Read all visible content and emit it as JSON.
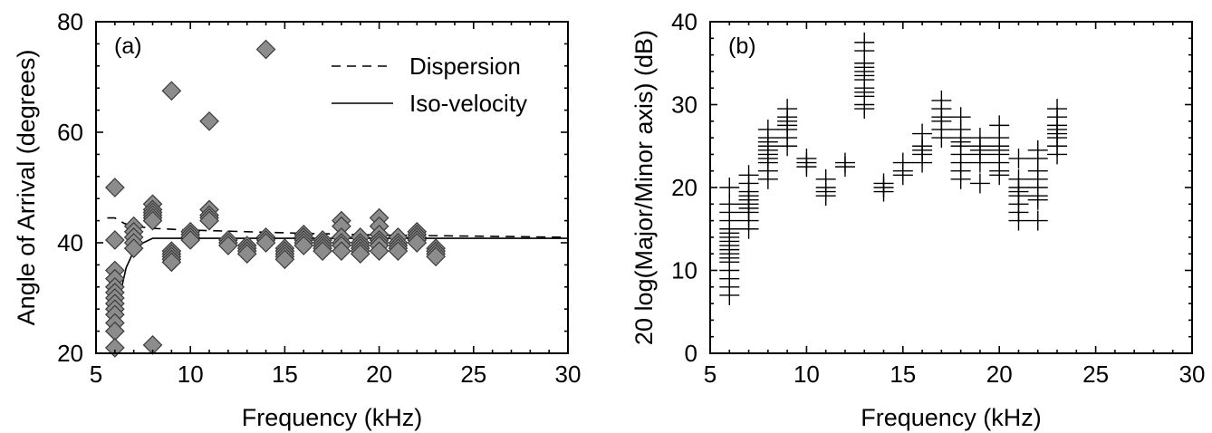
{
  "chart_data": [
    {
      "type": "scatter",
      "panel_label": "(a)",
      "title": "",
      "xlabel": "Frequency  (kHz)",
      "ylabel": "Angle of Arrival (degrees)",
      "xlim": [
        5,
        30
      ],
      "ylim": [
        20,
        80
      ],
      "xticks": [
        5,
        10,
        15,
        20,
        25,
        30
      ],
      "yticks": [
        20,
        40,
        60,
        80
      ],
      "ytick_labels": [
        "20",
        "40",
        "60",
        "80"
      ],
      "legend_position": "top-right",
      "legend": [
        {
          "label": "Dispersion",
          "style": "dashed"
        },
        {
          "label": "Iso-velocity",
          "style": "solid"
        }
      ],
      "series": [
        {
          "marker": "diamond",
          "points": [
            [
              6,
              50
            ],
            [
              6,
              40.5
            ],
            [
              6,
              35
            ],
            [
              6,
              33.5
            ],
            [
              6,
              32
            ],
            [
              6,
              31
            ],
            [
              6,
              30
            ],
            [
              6,
              29
            ],
            [
              6,
              28
            ],
            [
              6,
              27
            ],
            [
              6,
              25.5
            ],
            [
              6,
              24
            ],
            [
              6,
              21
            ],
            [
              7,
              43
            ],
            [
              7,
              42
            ],
            [
              7,
              41
            ],
            [
              7,
              40
            ],
            [
              7,
              39
            ],
            [
              8,
              47
            ],
            [
              8,
              46
            ],
            [
              8,
              45.5
            ],
            [
              8,
              45
            ],
            [
              8,
              44.5
            ],
            [
              8,
              44
            ],
            [
              8,
              21.5
            ],
            [
              9,
              67.5
            ],
            [
              9,
              38.5
            ],
            [
              9,
              38
            ],
            [
              9,
              37.5
            ],
            [
              9,
              37
            ],
            [
              9,
              36.5
            ],
            [
              10,
              42
            ],
            [
              10,
              41.5
            ],
            [
              10,
              41
            ],
            [
              10,
              40.5
            ],
            [
              11,
              62
            ],
            [
              11,
              46
            ],
            [
              11,
              45
            ],
            [
              11,
              44.5
            ],
            [
              11,
              44
            ],
            [
              12,
              40.5
            ],
            [
              12,
              40
            ],
            [
              12,
              39.5
            ],
            [
              13,
              39.5
            ],
            [
              13,
              39
            ],
            [
              13,
              38.5
            ],
            [
              13,
              38
            ],
            [
              14,
              75
            ],
            [
              14,
              41
            ],
            [
              14,
              40.5
            ],
            [
              14,
              40
            ],
            [
              15,
              39
            ],
            [
              15,
              38.5
            ],
            [
              15,
              38
            ],
            [
              15,
              37.5
            ],
            [
              15,
              37
            ],
            [
              16,
              41.5
            ],
            [
              16,
              41
            ],
            [
              16,
              40.5
            ],
            [
              16,
              40
            ],
            [
              16,
              39.5
            ],
            [
              17,
              40.5
            ],
            [
              17,
              40
            ],
            [
              17,
              39.5
            ],
            [
              17,
              39
            ],
            [
              17,
              38.5
            ],
            [
              18,
              44
            ],
            [
              18,
              43
            ],
            [
              18,
              41
            ],
            [
              18,
              40
            ],
            [
              18,
              39.5
            ],
            [
              18,
              38.5
            ],
            [
              19,
              41
            ],
            [
              19,
              40
            ],
            [
              19,
              39.5
            ],
            [
              19,
              39
            ],
            [
              19,
              38.5
            ],
            [
              19,
              38
            ],
            [
              20,
              44.5
            ],
            [
              20,
              43
            ],
            [
              20,
              41.5
            ],
            [
              20,
              40.5
            ],
            [
              20,
              40
            ],
            [
              20,
              39.5
            ],
            [
              20,
              38.5
            ],
            [
              21,
              41
            ],
            [
              21,
              40
            ],
            [
              21,
              39.5
            ],
            [
              21,
              39
            ],
            [
              21,
              38.5
            ],
            [
              22,
              42
            ],
            [
              22,
              41.5
            ],
            [
              22,
              41
            ],
            [
              22,
              40.5
            ],
            [
              22,
              40
            ],
            [
              23,
              39
            ],
            [
              23,
              38.5
            ],
            [
              23,
              38
            ],
            [
              23,
              37.5
            ]
          ]
        }
      ],
      "lines": [
        {
          "label": "Dispersion",
          "style": "dashed",
          "x": [
            5.6,
            6,
            6.5,
            7,
            8,
            10,
            15,
            20,
            25,
            30
          ],
          "y": [
            44.5,
            44.5,
            43.5,
            43,
            42.6,
            42.3,
            41.8,
            41.4,
            41.2,
            41
          ]
        },
        {
          "label": "Iso-velocity",
          "style": "solid",
          "x": [
            6,
            6.3,
            6.6,
            7,
            7.5,
            8,
            10,
            15,
            20,
            25,
            30
          ],
          "y": [
            26,
            31,
            35.5,
            38.5,
            40,
            40.8,
            40.8,
            40.8,
            40.8,
            40.8,
            40.8
          ]
        }
      ]
    },
    {
      "type": "scatter",
      "panel_label": "(b)",
      "title": "",
      "xlabel": "Frequency  (kHz)",
      "ylabel": "20 log(Major/Minor axis) (dB)",
      "xlim": [
        5,
        30
      ],
      "ylim": [
        0,
        40
      ],
      "xticks": [
        5,
        10,
        15,
        20,
        25,
        30
      ],
      "yticks": [
        0,
        10,
        20,
        30,
        40
      ],
      "ytick_labels": [
        "0",
        "10",
        "20",
        "30",
        "40"
      ],
      "series": [
        {
          "marker": "plus",
          "points": [
            [
              6,
              20
            ],
            [
              6,
              18
            ],
            [
              6,
              17
            ],
            [
              6,
              16
            ],
            [
              6,
              15
            ],
            [
              6,
              14.5
            ],
            [
              6,
              14
            ],
            [
              6,
              13.5
            ],
            [
              6,
              13
            ],
            [
              6,
              12.5
            ],
            [
              6,
              12
            ],
            [
              6,
              11.5
            ],
            [
              6,
              11
            ],
            [
              6,
              10
            ],
            [
              6,
              9
            ],
            [
              6,
              8
            ],
            [
              6,
              7
            ],
            [
              7,
              21.5
            ],
            [
              7,
              20.5
            ],
            [
              7,
              19.5
            ],
            [
              7,
              19
            ],
            [
              7,
              18.5
            ],
            [
              7,
              18
            ],
            [
              7,
              17.5
            ],
            [
              7,
              17
            ],
            [
              7,
              16
            ],
            [
              7,
              15
            ],
            [
              8,
              27
            ],
            [
              8,
              26
            ],
            [
              8,
              25.5
            ],
            [
              8,
              25
            ],
            [
              8,
              24.5
            ],
            [
              8,
              24
            ],
            [
              8,
              23.5
            ],
            [
              8,
              23
            ],
            [
              8,
              22
            ],
            [
              8,
              21
            ],
            [
              9,
              29.5
            ],
            [
              9,
              28.5
            ],
            [
              9,
              28
            ],
            [
              9,
              27.5
            ],
            [
              9,
              27
            ],
            [
              9,
              26
            ],
            [
              9,
              25
            ],
            [
              10,
              23.5
            ],
            [
              10,
              23
            ],
            [
              10,
              22.5
            ],
            [
              11,
              21
            ],
            [
              11,
              20
            ],
            [
              11,
              19.5
            ],
            [
              11,
              19
            ],
            [
              12,
              23
            ],
            [
              12,
              22.5
            ],
            [
              13,
              37.5
            ],
            [
              13,
              36.5
            ],
            [
              13,
              35
            ],
            [
              13,
              34.5
            ],
            [
              13,
              34
            ],
            [
              13,
              33.5
            ],
            [
              13,
              33
            ],
            [
              13,
              32
            ],
            [
              13,
              31.5
            ],
            [
              13,
              31
            ],
            [
              13,
              30
            ],
            [
              13,
              29.5
            ],
            [
              14,
              20.5
            ],
            [
              14,
              20
            ],
            [
              14,
              19.5
            ],
            [
              15,
              23
            ],
            [
              15,
              22
            ],
            [
              15,
              21.5
            ],
            [
              16,
              26.5
            ],
            [
              16,
              25
            ],
            [
              16,
              24.5
            ],
            [
              16,
              24
            ],
            [
              16,
              23
            ],
            [
              17,
              30.5
            ],
            [
              17,
              29.5
            ],
            [
              17,
              28.5
            ],
            [
              17,
              28
            ],
            [
              17,
              27
            ],
            [
              17,
              26
            ],
            [
              18,
              28.5
            ],
            [
              18,
              27
            ],
            [
              18,
              26
            ],
            [
              18,
              25.5
            ],
            [
              18,
              25
            ],
            [
              18,
              24
            ],
            [
              18,
              23
            ],
            [
              18,
              22
            ],
            [
              18,
              21
            ],
            [
              19,
              26
            ],
            [
              19,
              25
            ],
            [
              19,
              24.5
            ],
            [
              19,
              24
            ],
            [
              19,
              23
            ],
            [
              19,
              20.5
            ],
            [
              20,
              27.5
            ],
            [
              20,
              26
            ],
            [
              20,
              25
            ],
            [
              20,
              24.5
            ],
            [
              20,
              24
            ],
            [
              20,
              23
            ],
            [
              20,
              22
            ],
            [
              20,
              21.5
            ],
            [
              21,
              23.5
            ],
            [
              21,
              21
            ],
            [
              21,
              20
            ],
            [
              21,
              19.5
            ],
            [
              21,
              19
            ],
            [
              21,
              18
            ],
            [
              21,
              17
            ],
            [
              21,
              16
            ],
            [
              22,
              24.5
            ],
            [
              22,
              23.5
            ],
            [
              22,
              22
            ],
            [
              22,
              21
            ],
            [
              22,
              20
            ],
            [
              22,
              19
            ],
            [
              22,
              18.5
            ],
            [
              22,
              16
            ],
            [
              23,
              29.5
            ],
            [
              23,
              28.5
            ],
            [
              23,
              27.5
            ],
            [
              23,
              27
            ],
            [
              23,
              26.5
            ],
            [
              23,
              26
            ],
            [
              23,
              25
            ],
            [
              23,
              24
            ]
          ]
        }
      ]
    }
  ]
}
